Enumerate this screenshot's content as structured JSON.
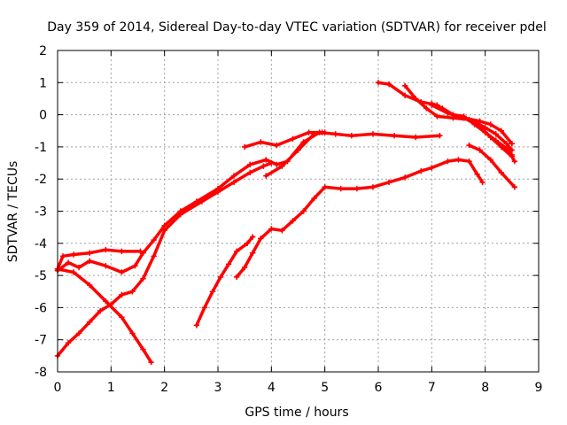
{
  "chart_data": {
    "type": "scatter",
    "title": "Day 359 of 2014, Sidereal Day-to-day VTEC variation (SDTVAR) for receiver pdel",
    "xlabel": "GPS time / hours",
    "ylabel": "SDTVAR / TECUs",
    "xlim": [
      0,
      9
    ],
    "ylim": [
      -8,
      2
    ],
    "xticks": [
      0,
      1,
      2,
      3,
      4,
      5,
      6,
      7,
      8,
      9
    ],
    "yticks": [
      -8,
      -7,
      -6,
      -5,
      -4,
      -3,
      -2,
      -1,
      0,
      1,
      2
    ],
    "grid": true,
    "marker": "plus",
    "color": "#ff0000",
    "series": [
      {
        "points": [
          [
            0.0,
            -4.8
          ],
          [
            0.1,
            -4.4
          ],
          [
            0.3,
            -4.35
          ],
          [
            0.6,
            -4.3
          ],
          [
            0.9,
            -4.2
          ],
          [
            1.2,
            -4.25
          ],
          [
            1.55,
            -4.25
          ]
        ]
      },
      {
        "points": [
          [
            0.0,
            -4.85
          ],
          [
            0.2,
            -4.6
          ],
          [
            0.4,
            -4.75
          ],
          [
            0.6,
            -4.55
          ],
          [
            0.9,
            -4.7
          ],
          [
            1.2,
            -4.9
          ],
          [
            1.45,
            -4.7
          ],
          [
            1.6,
            -4.3
          ],
          [
            1.8,
            -3.9
          ],
          [
            2.0,
            -3.45
          ],
          [
            2.3,
            -3.0
          ],
          [
            2.6,
            -2.7
          ],
          [
            3.0,
            -2.3
          ],
          [
            3.3,
            -1.9
          ],
          [
            3.6,
            -1.55
          ],
          [
            3.9,
            -1.4
          ],
          [
            4.1,
            -1.55
          ],
          [
            4.3,
            -1.45
          ],
          [
            4.6,
            -0.85
          ],
          [
            4.9,
            -0.55
          ],
          [
            5.2,
            -0.6
          ],
          [
            5.5,
            -0.65
          ],
          [
            5.9,
            -0.6
          ],
          [
            6.3,
            -0.65
          ],
          [
            6.7,
            -0.7
          ],
          [
            7.15,
            -0.65
          ]
        ]
      },
      {
        "points": [
          [
            0.0,
            -4.8
          ],
          [
            0.3,
            -4.9
          ],
          [
            0.6,
            -5.3
          ],
          [
            0.9,
            -5.8
          ],
          [
            1.2,
            -6.3
          ],
          [
            1.4,
            -6.8
          ],
          [
            1.6,
            -7.3
          ],
          [
            1.75,
            -7.7
          ]
        ]
      },
      {
        "points": [
          [
            0.0,
            -7.5
          ],
          [
            0.2,
            -7.1
          ],
          [
            0.4,
            -6.8
          ],
          [
            0.6,
            -6.45
          ],
          [
            0.8,
            -6.1
          ],
          [
            1.0,
            -5.9
          ],
          [
            1.2,
            -5.6
          ],
          [
            1.4,
            -5.5
          ],
          [
            1.6,
            -5.1
          ],
          [
            1.8,
            -4.4
          ],
          [
            2.0,
            -3.6
          ],
          [
            2.3,
            -3.1
          ],
          [
            2.7,
            -2.7
          ],
          [
            3.0,
            -2.4
          ],
          [
            3.3,
            -2.1
          ],
          [
            3.6,
            -1.8
          ],
          [
            3.85,
            -1.6
          ],
          [
            4.0,
            -1.5
          ]
        ]
      },
      {
        "points": [
          [
            2.6,
            -6.55
          ],
          [
            2.75,
            -6.0
          ],
          [
            2.9,
            -5.5
          ],
          [
            3.05,
            -5.05
          ],
          [
            3.2,
            -4.65
          ],
          [
            3.35,
            -4.25
          ],
          [
            3.55,
            -4.0
          ],
          [
            3.65,
            -3.8
          ]
        ]
      },
      {
        "points": [
          [
            3.35,
            -5.05
          ],
          [
            3.5,
            -4.75
          ],
          [
            3.65,
            -4.3
          ],
          [
            3.8,
            -3.85
          ],
          [
            4.0,
            -3.55
          ],
          [
            4.2,
            -3.6
          ],
          [
            4.4,
            -3.3
          ],
          [
            4.6,
            -3.0
          ],
          [
            4.8,
            -2.6
          ],
          [
            5.0,
            -2.25
          ],
          [
            5.3,
            -2.3
          ],
          [
            5.6,
            -2.3
          ],
          [
            5.9,
            -2.25
          ],
          [
            6.2,
            -2.1
          ],
          [
            6.5,
            -1.95
          ],
          [
            6.8,
            -1.75
          ],
          [
            7.0,
            -1.65
          ],
          [
            7.3,
            -1.45
          ],
          [
            7.5,
            -1.4
          ],
          [
            7.7,
            -1.45
          ],
          [
            7.85,
            -1.85
          ],
          [
            7.95,
            -2.1
          ]
        ]
      },
      {
        "points": [
          [
            3.9,
            -1.9
          ],
          [
            4.2,
            -1.6
          ],
          [
            4.5,
            -1.1
          ],
          [
            4.8,
            -0.6
          ],
          [
            5.0,
            -0.55
          ]
        ]
      },
      {
        "points": [
          [
            3.5,
            -1.0
          ],
          [
            3.8,
            -0.85
          ],
          [
            4.1,
            -0.95
          ],
          [
            4.4,
            -0.75
          ],
          [
            4.7,
            -0.55
          ],
          [
            4.95,
            -0.55
          ]
        ]
      },
      {
        "points": [
          [
            6.0,
            1.0
          ],
          [
            6.2,
            0.95
          ],
          [
            6.5,
            0.6
          ],
          [
            6.8,
            0.4
          ],
          [
            7.1,
            0.3
          ],
          [
            7.3,
            0.05
          ],
          [
            7.6,
            -0.1
          ],
          [
            7.9,
            -0.2
          ],
          [
            8.1,
            -0.3
          ],
          [
            8.3,
            -0.5
          ],
          [
            8.5,
            -0.9
          ]
        ]
      },
      {
        "points": [
          [
            6.5,
            0.9
          ],
          [
            6.7,
            0.5
          ],
          [
            6.9,
            0.2
          ],
          [
            7.1,
            -0.05
          ],
          [
            7.4,
            -0.1
          ],
          [
            7.7,
            -0.15
          ],
          [
            8.0,
            -0.4
          ],
          [
            8.2,
            -0.6
          ],
          [
            8.4,
            -0.9
          ],
          [
            8.5,
            -1.1
          ]
        ]
      },
      {
        "points": [
          [
            7.0,
            0.3
          ],
          [
            7.3,
            0.05
          ],
          [
            7.6,
            -0.1
          ],
          [
            7.9,
            -0.35
          ],
          [
            8.1,
            -0.7
          ],
          [
            8.3,
            -1.0
          ],
          [
            8.5,
            -1.3
          ],
          [
            8.55,
            -1.45
          ]
        ]
      },
      {
        "points": [
          [
            7.0,
            0.35
          ],
          [
            7.2,
            0.2
          ],
          [
            7.4,
            0.0
          ],
          [
            7.6,
            -0.05
          ],
          [
            7.8,
            -0.3
          ],
          [
            8.0,
            -0.55
          ],
          [
            8.2,
            -0.8
          ],
          [
            8.4,
            -1.05
          ],
          [
            8.5,
            -1.25
          ]
        ]
      },
      {
        "points": [
          [
            7.7,
            -0.95
          ],
          [
            7.9,
            -1.1
          ],
          [
            8.1,
            -1.4
          ],
          [
            8.3,
            -1.8
          ],
          [
            8.55,
            -2.25
          ]
        ]
      }
    ]
  }
}
